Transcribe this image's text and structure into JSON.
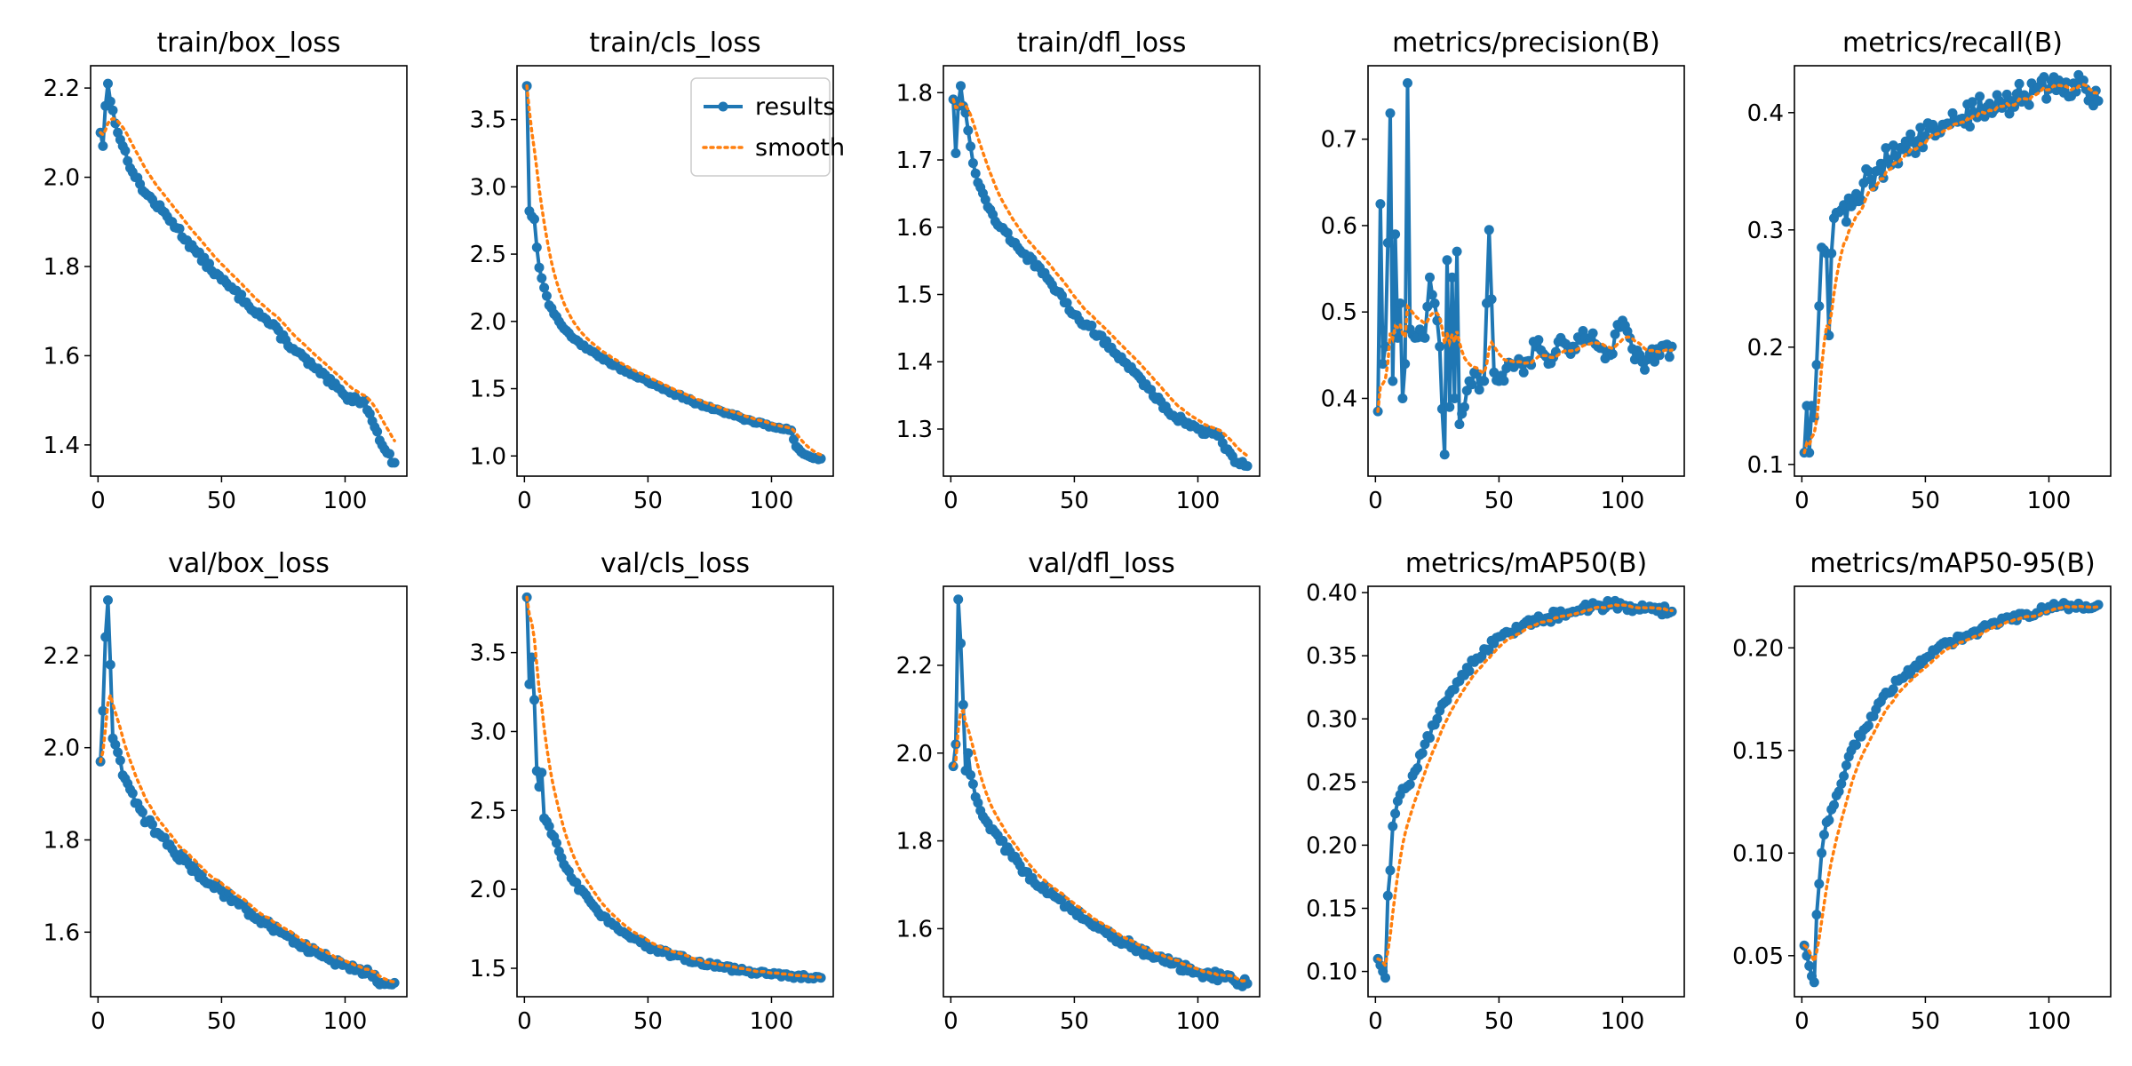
{
  "figure": {
    "legend": {
      "labels": [
        "results",
        "smooth"
      ]
    },
    "colors": {
      "results": "#1f77b4",
      "smooth": "#ff7f0e",
      "axis": "#000000"
    }
  },
  "chart_data": [
    {
      "type": "line",
      "title": "train/box_loss",
      "xlim": [
        -3,
        125
      ],
      "ylim": [
        1.33,
        2.25
      ],
      "xticks": [
        0,
        50,
        100
      ],
      "yticks": [
        1.4,
        1.6,
        1.8,
        2.0,
        2.2
      ],
      "ytick_labels": [
        "1.4",
        "1.6",
        "1.8",
        "2.0",
        "2.2"
      ],
      "anchors": [
        [
          1,
          2.1
        ],
        [
          2,
          2.07
        ],
        [
          3,
          2.16
        ],
        [
          4,
          2.21
        ],
        [
          5,
          2.17
        ],
        [
          6,
          2.15
        ],
        [
          8,
          2.1
        ],
        [
          10,
          2.07
        ],
        [
          15,
          2.0
        ],
        [
          20,
          1.96
        ],
        [
          30,
          1.9
        ],
        [
          40,
          1.83
        ],
        [
          50,
          1.77
        ],
        [
          60,
          1.72
        ],
        [
          70,
          1.67
        ],
        [
          80,
          1.61
        ],
        [
          90,
          1.56
        ],
        [
          100,
          1.51
        ],
        [
          105,
          1.5
        ],
        [
          108,
          1.5
        ],
        [
          110,
          1.47
        ],
        [
          112,
          1.44
        ],
        [
          114,
          1.41
        ],
        [
          116,
          1.39
        ],
        [
          118,
          1.38
        ],
        [
          119,
          1.36
        ],
        [
          120,
          1.36
        ]
      ],
      "noise": 0.008,
      "alpha": 0.15
    },
    {
      "type": "line",
      "title": "train/cls_loss",
      "xlim": [
        -3,
        125
      ],
      "ylim": [
        0.85,
        3.9
      ],
      "xticks": [
        0,
        50,
        100
      ],
      "yticks": [
        1.0,
        1.5,
        2.0,
        2.5,
        3.0,
        3.5
      ],
      "ytick_labels": [
        "1.0",
        "1.5",
        "2.0",
        "2.5",
        "3.0",
        "3.5"
      ],
      "legend": true,
      "anchors": [
        [
          1,
          3.75
        ],
        [
          2,
          2.82
        ],
        [
          3,
          2.78
        ],
        [
          4,
          2.76
        ],
        [
          5,
          2.55
        ],
        [
          6,
          2.4
        ],
        [
          8,
          2.25
        ],
        [
          10,
          2.12
        ],
        [
          15,
          1.97
        ],
        [
          20,
          1.87
        ],
        [
          30,
          1.74
        ],
        [
          40,
          1.64
        ],
        [
          50,
          1.55
        ],
        [
          60,
          1.47
        ],
        [
          70,
          1.39
        ],
        [
          80,
          1.33
        ],
        [
          90,
          1.27
        ],
        [
          100,
          1.22
        ],
        [
          108,
          1.19
        ],
        [
          110,
          1.07
        ],
        [
          112,
          1.03
        ],
        [
          115,
          1.0
        ],
        [
          120,
          0.98
        ]
      ],
      "noise": 0.01,
      "alpha": 0.2
    },
    {
      "type": "line",
      "title": "train/dfl_loss",
      "xlim": [
        -3,
        125
      ],
      "ylim": [
        1.23,
        1.84
      ],
      "xticks": [
        0,
        50,
        100
      ],
      "yticks": [
        1.3,
        1.4,
        1.5,
        1.6,
        1.7,
        1.8
      ],
      "ytick_labels": [
        "1.3",
        "1.4",
        "1.5",
        "1.6",
        "1.7",
        "1.8"
      ],
      "anchors": [
        [
          1,
          1.79
        ],
        [
          2,
          1.71
        ],
        [
          3,
          1.78
        ],
        [
          4,
          1.81
        ],
        [
          5,
          1.78
        ],
        [
          6,
          1.77
        ],
        [
          8,
          1.72
        ],
        [
          10,
          1.68
        ],
        [
          15,
          1.63
        ],
        [
          20,
          1.6
        ],
        [
          30,
          1.56
        ],
        [
          40,
          1.52
        ],
        [
          50,
          1.47
        ],
        [
          60,
          1.44
        ],
        [
          70,
          1.4
        ],
        [
          80,
          1.36
        ],
        [
          90,
          1.32
        ],
        [
          100,
          1.3
        ],
        [
          108,
          1.29
        ],
        [
          112,
          1.27
        ],
        [
          116,
          1.25
        ],
        [
          120,
          1.245
        ]
      ],
      "noise": 0.005,
      "alpha": 0.15
    },
    {
      "type": "line",
      "title": "metrics/precision(B)",
      "xlim": [
        -3,
        125
      ],
      "ylim": [
        0.31,
        0.785
      ],
      "xticks": [
        0,
        50,
        100
      ],
      "yticks": [
        0.4,
        0.5,
        0.6,
        0.7
      ],
      "ytick_labels": [
        "0.4",
        "0.5",
        "0.6",
        "0.7"
      ],
      "anchors": [
        [
          1,
          0.385
        ],
        [
          2,
          0.625
        ],
        [
          3,
          0.44
        ],
        [
          4,
          0.46
        ],
        [
          5,
          0.58
        ],
        [
          6,
          0.73
        ],
        [
          7,
          0.42
        ],
        [
          8,
          0.59
        ],
        [
          9,
          0.47
        ],
        [
          10,
          0.51
        ],
        [
          11,
          0.4
        ],
        [
          12,
          0.44
        ],
        [
          13,
          0.765
        ],
        [
          14,
          0.48
        ],
        [
          16,
          0.47
        ],
        [
          18,
          0.48
        ],
        [
          20,
          0.47
        ],
        [
          22,
          0.54
        ],
        [
          24,
          0.51
        ],
        [
          26,
          0.46
        ],
        [
          28,
          0.335
        ],
        [
          29,
          0.56
        ],
        [
          30,
          0.39
        ],
        [
          31,
          0.54
        ],
        [
          32,
          0.4
        ],
        [
          33,
          0.57
        ],
        [
          34,
          0.37
        ],
        [
          36,
          0.39
        ],
        [
          38,
          0.42
        ],
        [
          40,
          0.43
        ],
        [
          42,
          0.41
        ],
        [
          44,
          0.42
        ],
        [
          46,
          0.595
        ],
        [
          48,
          0.43
        ],
        [
          50,
          0.42
        ],
        [
          55,
          0.44
        ],
        [
          60,
          0.43
        ],
        [
          65,
          0.46
        ],
        [
          70,
          0.44
        ],
        [
          75,
          0.47
        ],
        [
          80,
          0.46
        ],
        [
          85,
          0.47
        ],
        [
          90,
          0.46
        ],
        [
          95,
          0.45
        ],
        [
          100,
          0.49
        ],
        [
          103,
          0.47
        ],
        [
          105,
          0.445
        ],
        [
          110,
          0.445
        ],
        [
          115,
          0.45
        ],
        [
          120,
          0.46
        ]
      ],
      "noise": 0.012,
      "alpha": 0.12
    },
    {
      "type": "line",
      "title": "metrics/recall(B)",
      "xlim": [
        -3,
        125
      ],
      "ylim": [
        0.09,
        0.44
      ],
      "xticks": [
        0,
        50,
        100
      ],
      "yticks": [
        0.1,
        0.2,
        0.3,
        0.4
      ],
      "ytick_labels": [
        "0.1",
        "0.2",
        "0.3",
        "0.4"
      ],
      "anchors": [
        [
          1,
          0.11
        ],
        [
          2,
          0.15
        ],
        [
          3,
          0.11
        ],
        [
          4,
          0.15
        ],
        [
          5,
          0.14
        ],
        [
          6,
          0.185
        ],
        [
          7,
          0.235
        ],
        [
          8,
          0.285
        ],
        [
          10,
          0.28
        ],
        [
          11,
          0.21
        ],
        [
          12,
          0.28
        ],
        [
          13,
          0.31
        ],
        [
          15,
          0.315
        ],
        [
          20,
          0.32
        ],
        [
          25,
          0.34
        ],
        [
          30,
          0.35
        ],
        [
          35,
          0.36
        ],
        [
          40,
          0.37
        ],
        [
          45,
          0.375
        ],
        [
          50,
          0.38
        ],
        [
          55,
          0.385
        ],
        [
          60,
          0.39
        ],
        [
          65,
          0.395
        ],
        [
          70,
          0.4
        ],
        [
          75,
          0.405
        ],
        [
          80,
          0.41
        ],
        [
          85,
          0.41
        ],
        [
          90,
          0.415
        ],
        [
          95,
          0.42
        ],
        [
          100,
          0.42
        ],
        [
          105,
          0.422
        ],
        [
          110,
          0.425
        ],
        [
          115,
          0.42
        ],
        [
          120,
          0.41
        ]
      ],
      "noise": 0.012,
      "alpha": 0.2
    },
    {
      "type": "line",
      "title": "val/box_loss",
      "xlim": [
        -3,
        125
      ],
      "ylim": [
        1.46,
        2.35
      ],
      "xticks": [
        0,
        50,
        100
      ],
      "yticks": [
        1.6,
        1.8,
        2.0,
        2.2
      ],
      "ytick_labels": [
        "1.6",
        "1.8",
        "2.0",
        "2.2"
      ],
      "anchors": [
        [
          1,
          1.97
        ],
        [
          2,
          2.08
        ],
        [
          3,
          2.24
        ],
        [
          4,
          2.32
        ],
        [
          5,
          2.18
        ],
        [
          6,
          2.02
        ],
        [
          8,
          1.99
        ],
        [
          10,
          1.94
        ],
        [
          15,
          1.88
        ],
        [
          20,
          1.84
        ],
        [
          30,
          1.78
        ],
        [
          40,
          1.73
        ],
        [
          50,
          1.69
        ],
        [
          60,
          1.65
        ],
        [
          70,
          1.61
        ],
        [
          80,
          1.58
        ],
        [
          90,
          1.55
        ],
        [
          100,
          1.53
        ],
        [
          110,
          1.51
        ],
        [
          115,
          1.49
        ],
        [
          120,
          1.49
        ]
      ],
      "noise": 0.01,
      "alpha": 0.2
    },
    {
      "type": "line",
      "title": "val/cls_loss",
      "xlim": [
        -3,
        125
      ],
      "ylim": [
        1.32,
        3.92
      ],
      "xticks": [
        0,
        50,
        100
      ],
      "yticks": [
        1.5,
        2.0,
        2.5,
        3.0,
        3.5
      ],
      "ytick_labels": [
        "1.5",
        "2.0",
        "2.5",
        "3.0",
        "3.5"
      ],
      "anchors": [
        [
          1,
          3.85
        ],
        [
          2,
          3.3
        ],
        [
          3,
          3.47
        ],
        [
          4,
          3.2
        ],
        [
          5,
          2.75
        ],
        [
          6,
          2.65
        ],
        [
          7,
          2.74
        ],
        [
          8,
          2.45
        ],
        [
          10,
          2.4
        ],
        [
          15,
          2.2
        ],
        [
          20,
          2.05
        ],
        [
          30,
          1.85
        ],
        [
          40,
          1.73
        ],
        [
          50,
          1.64
        ],
        [
          60,
          1.58
        ],
        [
          70,
          1.54
        ],
        [
          80,
          1.51
        ],
        [
          90,
          1.48
        ],
        [
          100,
          1.46
        ],
        [
          110,
          1.45
        ],
        [
          120,
          1.44
        ]
      ],
      "noise": 0.015,
      "alpha": 0.2
    },
    {
      "type": "line",
      "title": "val/dfl_loss",
      "xlim": [
        -3,
        125
      ],
      "ylim": [
        1.445,
        2.38
      ],
      "xticks": [
        0,
        50,
        100
      ],
      "yticks": [
        1.6,
        1.8,
        2.0,
        2.2
      ],
      "ytick_labels": [
        "1.6",
        "1.8",
        "2.0",
        "2.2"
      ],
      "anchors": [
        [
          1,
          1.97
        ],
        [
          2,
          2.02
        ],
        [
          3,
          2.35
        ],
        [
          4,
          2.25
        ],
        [
          5,
          2.11
        ],
        [
          6,
          1.96
        ],
        [
          7,
          2.0
        ],
        [
          8,
          1.95
        ],
        [
          10,
          1.9
        ],
        [
          15,
          1.84
        ],
        [
          20,
          1.8
        ],
        [
          30,
          1.73
        ],
        [
          40,
          1.68
        ],
        [
          50,
          1.64
        ],
        [
          60,
          1.6
        ],
        [
          70,
          1.57
        ],
        [
          80,
          1.54
        ],
        [
          90,
          1.52
        ],
        [
          100,
          1.5
        ],
        [
          110,
          1.49
        ],
        [
          115,
          1.48
        ],
        [
          120,
          1.475
        ]
      ],
      "noise": 0.01,
      "alpha": 0.2
    },
    {
      "type": "line",
      "title": "metrics/mAP50(B)",
      "xlim": [
        -3,
        125
      ],
      "ylim": [
        0.08,
        0.405
      ],
      "xticks": [
        0,
        50,
        100
      ],
      "yticks": [
        0.1,
        0.15,
        0.2,
        0.25,
        0.3,
        0.35,
        0.4
      ],
      "ytick_labels": [
        "0.10",
        "0.15",
        "0.20",
        "0.25",
        "0.30",
        "0.35",
        "0.40"
      ],
      "anchors": [
        [
          1,
          0.11
        ],
        [
          2,
          0.105
        ],
        [
          3,
          0.1
        ],
        [
          4,
          0.095
        ],
        [
          5,
          0.16
        ],
        [
          6,
          0.18
        ],
        [
          7,
          0.215
        ],
        [
          8,
          0.225
        ],
        [
          10,
          0.24
        ],
        [
          15,
          0.255
        ],
        [
          20,
          0.28
        ],
        [
          25,
          0.3
        ],
        [
          30,
          0.32
        ],
        [
          35,
          0.335
        ],
        [
          40,
          0.345
        ],
        [
          45,
          0.355
        ],
        [
          50,
          0.365
        ],
        [
          60,
          0.375
        ],
        [
          70,
          0.38
        ],
        [
          80,
          0.385
        ],
        [
          90,
          0.39
        ],
        [
          100,
          0.39
        ],
        [
          110,
          0.388
        ],
        [
          120,
          0.385
        ]
      ],
      "noise": 0.004,
      "alpha": 0.2
    },
    {
      "type": "line",
      "title": "metrics/mAP50-95(B)",
      "xlim": [
        -3,
        125
      ],
      "ylim": [
        0.03,
        0.23
      ],
      "xticks": [
        0,
        50,
        100
      ],
      "yticks": [
        0.05,
        0.1,
        0.15,
        0.2
      ],
      "ytick_labels": [
        "0.05",
        "0.10",
        "0.15",
        "0.20"
      ],
      "anchors": [
        [
          1,
          0.055
        ],
        [
          2,
          0.05
        ],
        [
          3,
          0.045
        ],
        [
          4,
          0.04
        ],
        [
          5,
          0.037
        ],
        [
          6,
          0.07
        ],
        [
          7,
          0.085
        ],
        [
          8,
          0.1
        ],
        [
          10,
          0.115
        ],
        [
          15,
          0.13
        ],
        [
          20,
          0.15
        ],
        [
          25,
          0.16
        ],
        [
          30,
          0.17
        ],
        [
          35,
          0.178
        ],
        [
          40,
          0.185
        ],
        [
          45,
          0.19
        ],
        [
          50,
          0.195
        ],
        [
          60,
          0.203
        ],
        [
          70,
          0.208
        ],
        [
          80,
          0.212
        ],
        [
          90,
          0.216
        ],
        [
          100,
          0.22
        ],
        [
          110,
          0.22
        ],
        [
          120,
          0.221
        ]
      ],
      "noise": 0.002,
      "alpha": 0.2
    }
  ]
}
